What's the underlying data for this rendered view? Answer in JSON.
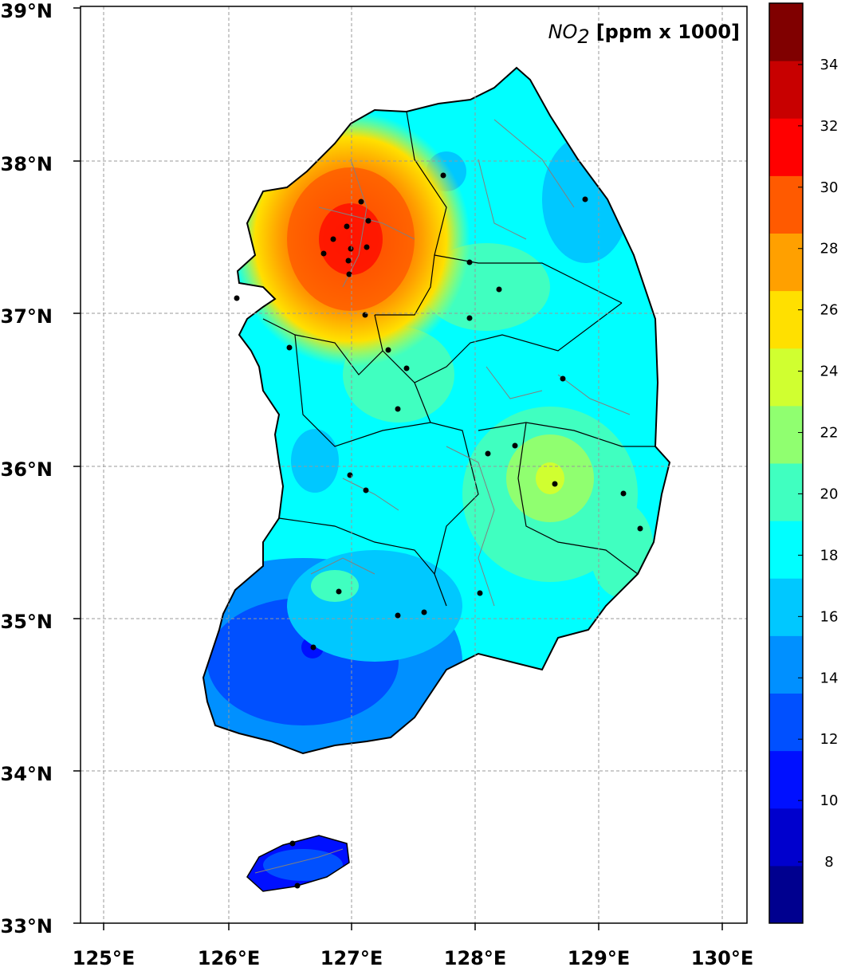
{
  "map": {
    "title_var": "NO",
    "title_sub": "2",
    "title_unit": "[ppm x 1000]",
    "lat_labels": [
      "33°N",
      "34°N",
      "35°N",
      "36°N",
      "37°N",
      "38°N",
      "39°N"
    ],
    "lon_labels": [
      "125°E",
      "126°E",
      "127°E",
      "128°E",
      "129°E",
      "130°E"
    ],
    "extent": {
      "lon": [
        124.8,
        130.2
      ],
      "lat": [
        33.0,
        39.0
      ]
    },
    "colorbar": {
      "ticks": [
        "8",
        "10",
        "12",
        "14",
        "16",
        "18",
        "20",
        "22",
        "24",
        "26",
        "28",
        "30",
        "32",
        "34"
      ],
      "range": [
        6,
        36
      ],
      "step": 2,
      "colors": [
        "#00008f",
        "#0000cd",
        "#0010ff",
        "#0050ff",
        "#0090ff",
        "#00c8ff",
        "#00ffff",
        "#40ffc0",
        "#90ff70",
        "#d0ff30",
        "#ffe000",
        "#ffa000",
        "#ff5a00",
        "#ff0000",
        "#c80000",
        "#800000"
      ]
    },
    "colors": {
      "grid": "#999999",
      "coast": "#000000",
      "district": "#808080",
      "station": "#000000"
    }
  }
}
